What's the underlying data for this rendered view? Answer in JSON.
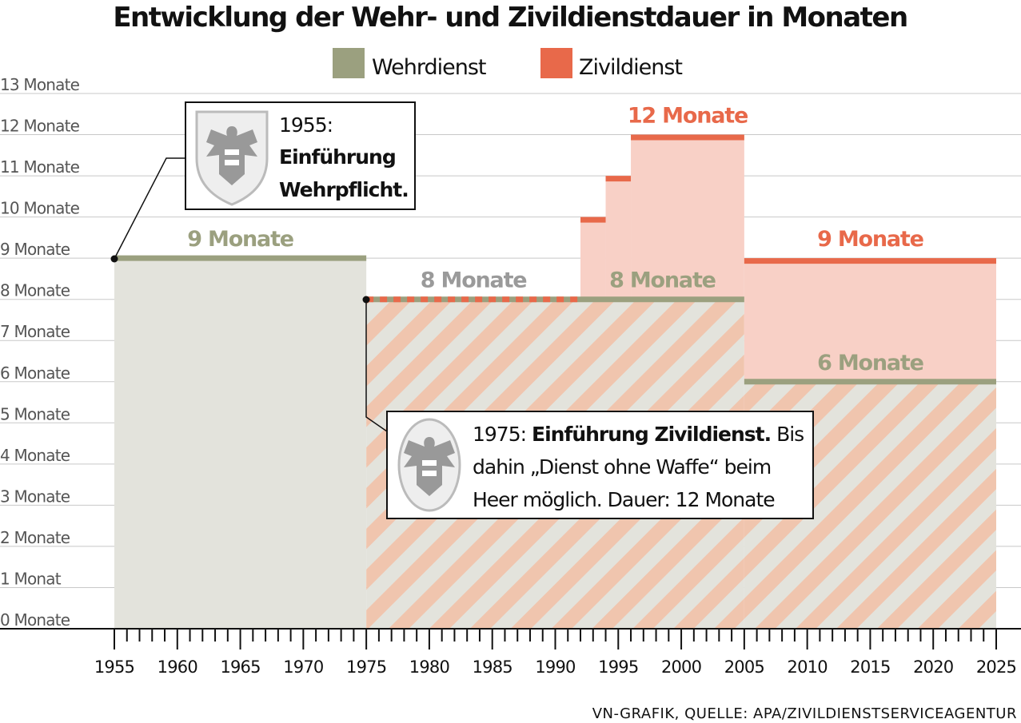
{
  "chart_data": {
    "type": "step-area",
    "title": "Entwicklung der Wehr- und Zivildienstdauer in Monaten",
    "legend": {
      "placement": "top-center"
    },
    "colors": {
      "Wehrdienst": "#9ba07f",
      "Zivildienst": "#e8694a",
      "zivil_fill": "#f8d0c6",
      "wehr_fill": "#e3e3dc",
      "hatch": "#f0c5ae"
    },
    "series": [
      {
        "name": "Wehrdienst",
        "segments": [
          {
            "from": 1955,
            "to": 1975,
            "value": 9
          },
          {
            "from": 1975,
            "to": 2005,
            "value": 8
          },
          {
            "from": 2005,
            "to": 2025,
            "value": 6
          }
        ]
      },
      {
        "name": "Zivildienst",
        "segments": [
          {
            "from": 1975,
            "to": 1992,
            "value": 8
          },
          {
            "from": 1992,
            "to": 1994,
            "value": 10
          },
          {
            "from": 1994,
            "to": 1996,
            "value": 11
          },
          {
            "from": 1996,
            "to": 2005,
            "value": 12
          },
          {
            "from": 2005,
            "to": 2025,
            "value": 9
          }
        ]
      }
    ],
    "data_labels": [
      {
        "text": "9 Monate",
        "series": "Wehrdienst",
        "x": 1965,
        "y": 9
      },
      {
        "text": "8 Monate",
        "series": "neutral",
        "x": 1983.5,
        "y": 8
      },
      {
        "text": "8 Monate",
        "series": "Wehrdienst",
        "x": 1998.5,
        "y": 8
      },
      {
        "text": "12 Monate",
        "series": "Zivildienst",
        "x": 2000.5,
        "y": 12
      },
      {
        "text": "9 Monate",
        "series": "Zivildienst",
        "x": 2015,
        "y": 9
      },
      {
        "text": "6 Monate",
        "series": "Wehrdienst",
        "x": 2015,
        "y": 6
      }
    ],
    "xlim": [
      1955,
      2025
    ],
    "ylim": [
      0,
      13
    ],
    "x_ticks": [
      "1955",
      "1960",
      "1965",
      "1970",
      "1975",
      "1980",
      "1985",
      "1990",
      "1995",
      "2000",
      "2005",
      "2010",
      "2015",
      "2020",
      "2025"
    ],
    "y_ticks": [
      "0 Monate",
      "1 Monat",
      "2 Monate",
      "3 Monate",
      "4 Monate",
      "5 Monate",
      "6 Monate",
      "7 Monate",
      "8 Monate",
      "9 Monate",
      "10 Monate",
      "11 Monate",
      "12 Monate",
      "13 Monate"
    ],
    "grid": true,
    "annotations": [
      {
        "year": 1955,
        "value": 9,
        "lines": [
          [
            "1955:",
            ""
          ],
          [
            "",
            "Einführung"
          ],
          [
            "",
            "Wehrpflicht."
          ]
        ]
      },
      {
        "year": 1975,
        "value": 8,
        "lines": [
          [
            "1975: ",
            "Einführung Zivildienst.",
            " Bis"
          ],
          [
            "dahin „Dienst ohne Waffe“ beim",
            "",
            ""
          ],
          [
            "Heer möglich. Dauer: 12 Monate",
            "",
            ""
          ]
        ]
      }
    ]
  },
  "source": "VN-GRAFIK, QUELLE: APA/ZIVILDIENSTSERVICEAGENTUR"
}
